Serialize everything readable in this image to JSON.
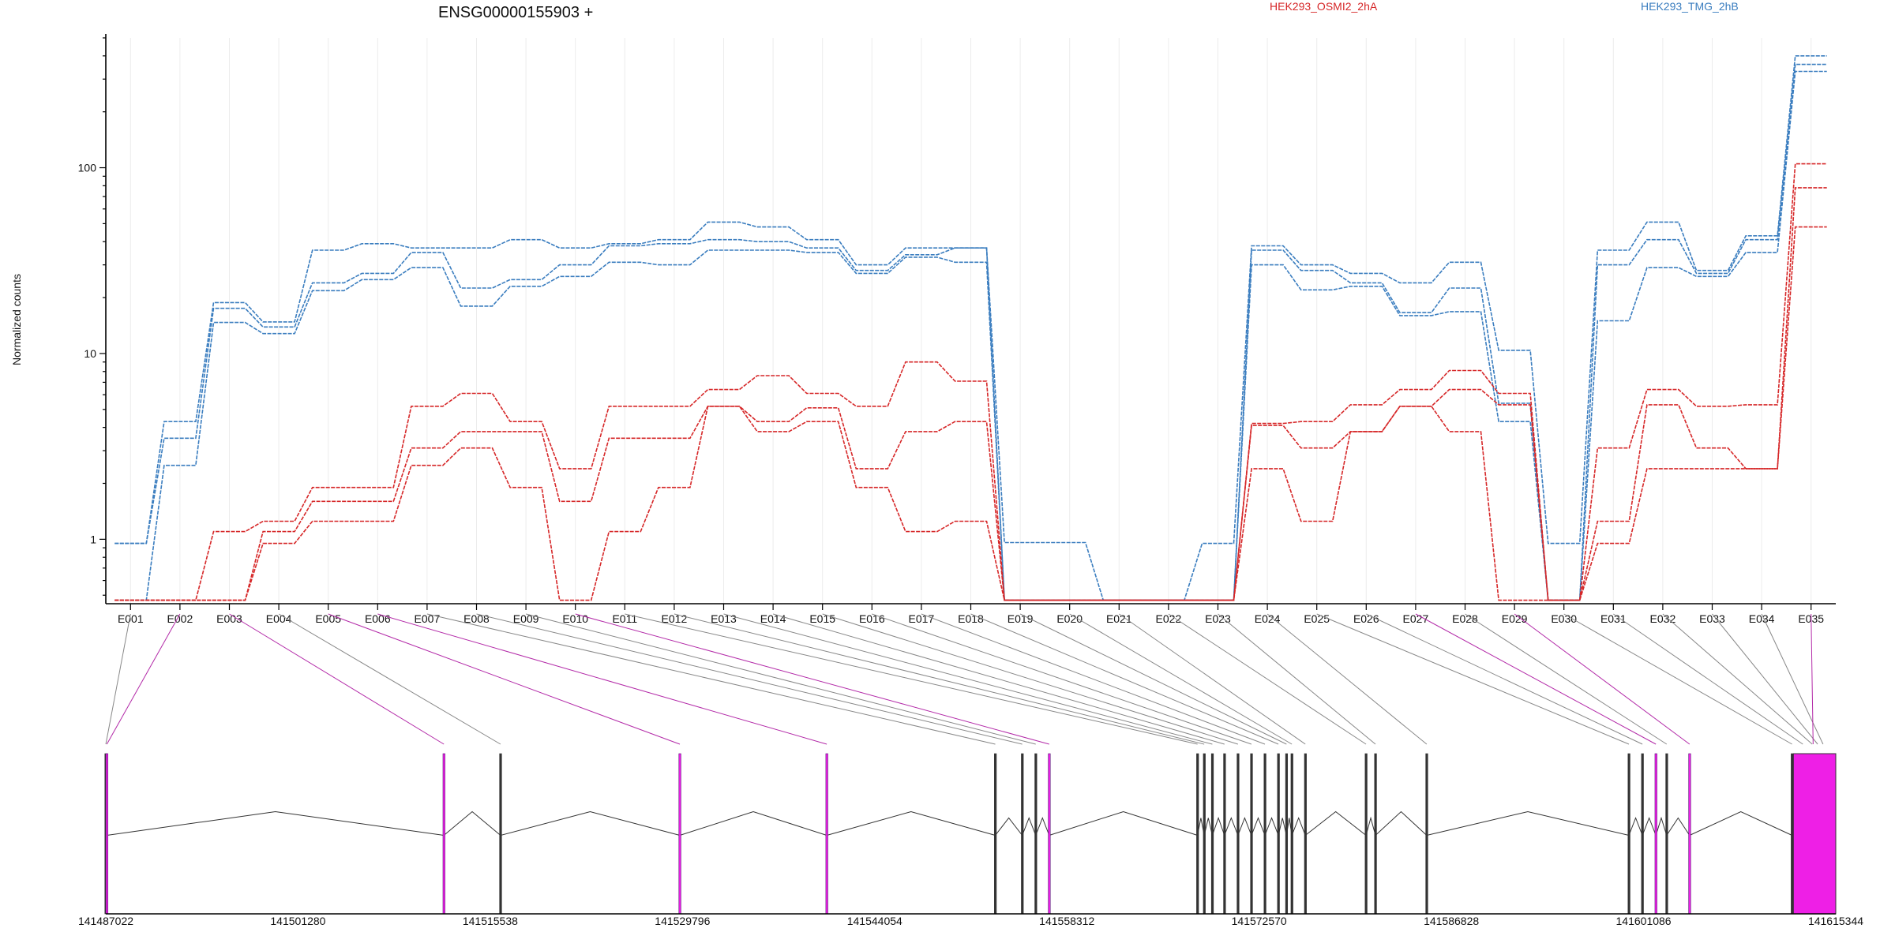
{
  "chart_data": {
    "type": "line",
    "title": "ENSG00000155903 +",
    "ylabel": "Normalized counts",
    "yscale": "log",
    "ylim": [
      0.45,
      500
    ],
    "yticks": [
      {
        "value": 1,
        "label": "1"
      },
      {
        "value": 10,
        "label": "10"
      },
      {
        "value": 100,
        "label": "100"
      }
    ],
    "grid": "vertical lines at each exon bin",
    "categories": [
      "E001",
      "E002",
      "E003",
      "E004",
      "E005",
      "E006",
      "E007",
      "E008",
      "E009",
      "E010",
      "E011",
      "E012",
      "E013",
      "E014",
      "E015",
      "E016",
      "E017",
      "E018",
      "E019",
      "E020",
      "E021",
      "E022",
      "E023",
      "E024",
      "E025",
      "E026",
      "E027",
      "E028",
      "E029",
      "E030",
      "E031",
      "E032",
      "E033",
      "E034",
      "E035"
    ],
    "legend": [
      {
        "label": "HEK293_OSMI2_2hA",
        "color": "#d62728"
      },
      {
        "label": "HEK293_TMG_2hB",
        "color": "#3a7dbf"
      }
    ],
    "series": [
      {
        "group": 1,
        "color": "#3a7dbf",
        "values": [
          0.95,
          4.3,
          18.8,
          14.8,
          36,
          39,
          37,
          37,
          41,
          37,
          39,
          41,
          51,
          48,
          41,
          30,
          37,
          37,
          0.96,
          0.96,
          0.47,
          0.47,
          0.95,
          38,
          30,
          27,
          24,
          31,
          10.4,
          0.95,
          36,
          51,
          28,
          43,
          400
        ]
      },
      {
        "group": 1,
        "color": "#3a7dbf",
        "values": [
          0.95,
          3.5,
          17.5,
          13.9,
          24,
          27,
          35,
          22.5,
          25,
          30,
          38,
          39,
          41,
          40,
          37,
          28,
          34,
          37,
          0.47,
          0.47,
          0.47,
          0.47,
          0.47,
          36,
          28,
          24,
          16.6,
          22.5,
          5.4,
          0.47,
          30,
          41,
          27,
          41,
          360
        ]
      },
      {
        "group": 1,
        "color": "#3a7dbf",
        "values": [
          0.47,
          2.5,
          14.7,
          12.8,
          21.8,
          25,
          29,
          18,
          23,
          26,
          31,
          30,
          36,
          36,
          35,
          27,
          33,
          31,
          0.47,
          0.47,
          0.47,
          0.47,
          0.47,
          30,
          22,
          23,
          16,
          16.8,
          4.3,
          0.47,
          15,
          29,
          26,
          35,
          330
        ]
      },
      {
        "group": 0,
        "color": "#d62728",
        "values": [
          0.47,
          0.47,
          1.1,
          1.25,
          1.9,
          1.9,
          5.2,
          6.1,
          4.3,
          2.4,
          5.2,
          5.2,
          6.4,
          7.6,
          6.1,
          5.2,
          9,
          7.1,
          0.47,
          0.47,
          0.47,
          0.47,
          0.47,
          4.2,
          4.3,
          5.3,
          6.4,
          8.1,
          6.1,
          0.47,
          3.1,
          6.4,
          5.2,
          5.3,
          105
        ]
      },
      {
        "group": 0,
        "color": "#d62728",
        "values": [
          0.47,
          0.47,
          0.47,
          1.1,
          1.6,
          1.6,
          3.1,
          3.8,
          3.8,
          1.6,
          3.5,
          3.5,
          5.2,
          4.3,
          5.1,
          2.4,
          3.8,
          4.3,
          0.47,
          0.47,
          0.47,
          0.47,
          0.47,
          4.1,
          3.1,
          3.8,
          5.2,
          6.4,
          5.3,
          0.47,
          1.25,
          5.3,
          3.1,
          2.4,
          78
        ]
      },
      {
        "group": 0,
        "color": "#d62728",
        "values": [
          0.47,
          0.47,
          0.47,
          0.95,
          1.25,
          1.25,
          2.5,
          3.1,
          1.9,
          0.47,
          1.1,
          1.9,
          5.2,
          3.8,
          4.3,
          1.9,
          1.1,
          1.25,
          0.47,
          0.47,
          0.47,
          0.47,
          0.47,
          2.4,
          1.25,
          3.8,
          5.2,
          3.8,
          0.47,
          0.47,
          0.95,
          2.4,
          2.4,
          2.4,
          48
        ]
      }
    ],
    "genome_axis": {
      "xlim": [
        141487022,
        141615344
      ],
      "ticks": [
        141487022,
        141501280,
        141515538,
        141529796,
        141544054,
        141558312,
        141572570,
        141586828,
        141601086,
        141615344
      ],
      "tick_labels": [
        "141487022",
        "141501280",
        "141515538",
        "141529796",
        "141544054",
        "141558312",
        "141572570",
        "141586828",
        "141601086",
        "141615344"
      ]
    },
    "exon_model": {
      "highlight_color": "#ee1fe6",
      "exon_positions": [
        141487022,
        141487100,
        141512100,
        141516300,
        141529600,
        141540500,
        141553000,
        141555000,
        141556000,
        141557000,
        141568000,
        141568500,
        141569100,
        141570000,
        141571000,
        141572000,
        141573000,
        141574000,
        141574600,
        141575000,
        141576000,
        141580500,
        141581200,
        141585000,
        141600000,
        141601000,
        141602000,
        141602800,
        141604500,
        141612100,
        141612900,
        141613600,
        141614000,
        141614400,
        141615344
      ],
      "highlighted_exons": [
        "E002",
        "E003",
        "E005",
        "E006",
        "E010",
        "E027",
        "E029",
        "E035"
      ],
      "final_exon_span": [
        141612200,
        141615344
      ]
    }
  }
}
